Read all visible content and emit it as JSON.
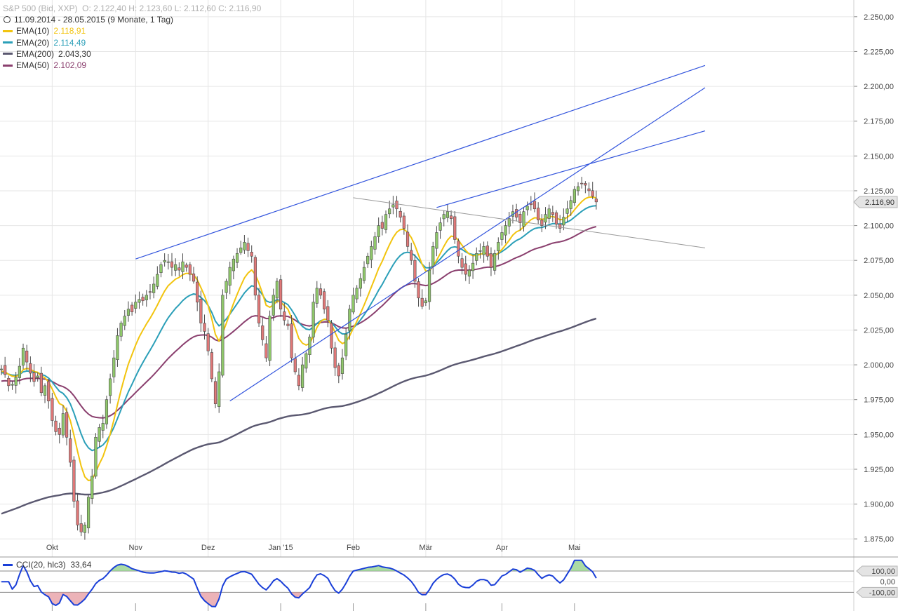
{
  "header": {
    "instrument": "S&P 500 (Bid, XXP)",
    "ohlc": "O: 2.122,40   H: 2.123,60   L: 2.112,60   C: 2.116,90",
    "range": "11.09.2014 - 28.05.2015 (9 Monate, 1 Tag)"
  },
  "legend": [
    {
      "label": "EMA(10)",
      "value": "2.118,91",
      "color": "#f2c40f"
    },
    {
      "label": "EMA(20)",
      "value": "2.114,49",
      "color": "#2b9fb8"
    },
    {
      "label": "EMA(200)",
      "value": "2.043,30",
      "color": "#5a5870"
    },
    {
      "label": "EMA(50)",
      "value": "2.102,09",
      "color": "#8a3f6e"
    }
  ],
  "cci_legend": {
    "label": "CCI(20, hlc3)",
    "value": "33,64",
    "color": "#1a3fd8"
  },
  "chart_data": [
    {
      "type": "candlestick",
      "ylim": [
        1862,
        2262
      ],
      "y_ticks": [
        1875,
        1900,
        1925,
        1950,
        1975,
        2000,
        2025,
        2050,
        2075,
        2100,
        2125,
        2150,
        2175,
        2200,
        2225,
        2250
      ],
      "y_tick_labels": [
        "1.875,00",
        "1.900,00",
        "1.925,00",
        "1.950,00",
        "1.975,00",
        "2.000,00",
        "2.025,00",
        "2.050,00",
        "2.075,00",
        "2.100,00",
        "2.125,00",
        "2.150,00",
        "2.175,00",
        "2.200,00",
        "2.225,00",
        "2.250,00"
      ],
      "last_price": 2116.9,
      "last_price_label": "2.116,90",
      "x_labels": [
        "Okt",
        "Nov",
        "Dez",
        "Jan '15",
        "Feb",
        "Mär",
        "Apr",
        "Mai"
      ],
      "month_start_index": [
        14,
        37,
        57,
        77,
        97,
        117,
        138,
        158
      ],
      "closes": [
        1997,
        1993,
        1985,
        1986,
        1991,
        1999,
        2012,
        2002,
        1994,
        1988,
        1992,
        1980,
        1985,
        1974,
        1960,
        1952,
        1950,
        1965,
        1948,
        1930,
        1902,
        1885,
        1880,
        1885,
        1905,
        1920,
        1948,
        1955,
        1958,
        1975,
        1990,
        2005,
        2021,
        2030,
        2035,
        2040,
        2038,
        2045,
        2047,
        2046,
        2050,
        2052,
        2058,
        2065,
        2072,
        2075,
        2074,
        2070,
        2072,
        2068,
        2074,
        2070,
        2065,
        2060,
        2045,
        2030,
        2024,
        2010,
        1990,
        1972,
        1995,
        2050,
        2060,
        2070,
        2076,
        2080,
        2084,
        2088,
        2082,
        2078,
        2050,
        2030,
        2018,
        2005,
        2035,
        2050,
        2060,
        2040,
        2032,
        2028,
        2005,
        1995,
        1985,
        2000,
        2008,
        2020,
        2045,
        2055,
        2050,
        2040,
        2032,
        2012,
        1998,
        1992,
        2005,
        2022,
        2040,
        2050,
        2055,
        2062,
        2070,
        2078,
        2085,
        2092,
        2100,
        2098,
        2108,
        2112,
        2115,
        2112,
        2106,
        2098,
        2085,
        2075,
        2060,
        2048,
        2042,
        2046,
        2068,
        2085,
        2095,
        2102,
        2108,
        2110,
        2105,
        2090,
        2078,
        2070,
        2065,
        2068,
        2073,
        2080,
        2082,
        2085,
        2078,
        2070,
        2080,
        2088,
        2095,
        2100,
        2105,
        2110,
        2106,
        2102,
        2110,
        2114,
        2115,
        2112,
        2104,
        2100,
        2108,
        2112,
        2108,
        2101,
        2098,
        2106,
        2112,
        2118,
        2126,
        2128,
        2130,
        2129,
        2125,
        2121,
        2117
      ],
      "series": [
        {
          "name": "EMA(10)",
          "color": "#f2c40f",
          "last": 2118.91
        },
        {
          "name": "EMA(20)",
          "color": "#2b9fb8",
          "last": 2114.49
        },
        {
          "name": "EMA(200)",
          "color": "#5a5870",
          "last": 2043.3
        },
        {
          "name": "EMA(50)",
          "color": "#8a3f6e",
          "last": 2102.09
        }
      ],
      "trendlines": [
        {
          "color": "#3355dd",
          "from": [
            37,
            2076
          ],
          "to": [
            194,
            2215
          ]
        },
        {
          "color": "#3355dd",
          "from": [
            120,
            2113
          ],
          "to": [
            194,
            2168
          ]
        },
        {
          "color": "#3355dd",
          "from": [
            63,
            1974
          ],
          "to": [
            194,
            2199
          ]
        },
        {
          "color": "#999999",
          "from": [
            97,
            2120
          ],
          "to": [
            194,
            2084
          ]
        }
      ]
    },
    {
      "type": "line",
      "name": "CCI(20, hlc3)",
      "ylim": [
        -275,
        225
      ],
      "levels": [
        100,
        0,
        -100
      ],
      "level_labels": [
        "100,00",
        "0,00",
        "-100,00"
      ],
      "last": 33.64
    }
  ]
}
